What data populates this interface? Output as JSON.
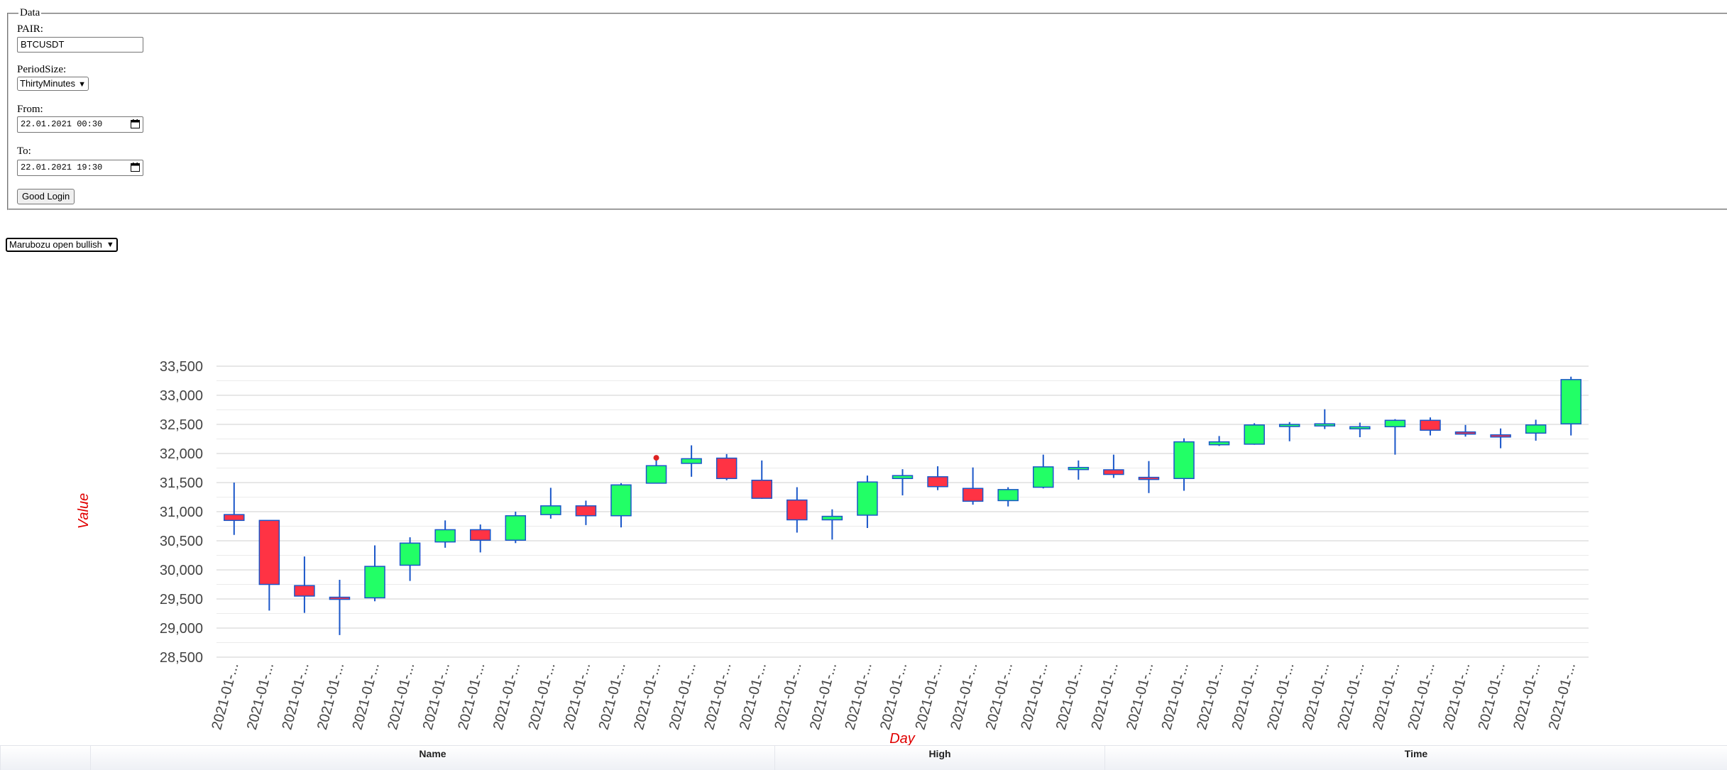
{
  "form": {
    "legend": "Data",
    "pair_label": "PAIR:",
    "pair_value": "BTCUSDT",
    "period_label": "PeriodSize:",
    "period_value": "ThirtyMinutes",
    "from_label": "From:",
    "from_value": "22.01.2021 00:30",
    "to_label": "To:",
    "to_value": "22.01.2021 19:30",
    "submit_label": "Good Login"
  },
  "pattern_select": {
    "value": "Marubozu open bullish"
  },
  "colors": {
    "bullish": "#22ff66",
    "bearish": "#ff3344",
    "wick": "#1a56c9",
    "marker": "#dd2222",
    "axis_title": "#e00000"
  },
  "chart_data": {
    "type": "candlestick",
    "xlabel": "Day",
    "ylabel": "Value",
    "ylim": [
      28500,
      33500
    ],
    "y_ticks": [
      "33,500",
      "33,000",
      "32,500",
      "32,000",
      "31,500",
      "31,000",
      "30,500",
      "30,000",
      "29,500",
      "29,000",
      "28,500"
    ],
    "grid": true,
    "x_tick_label": "2021-01-...",
    "candles": [
      {
        "o": 30950,
        "h": 31500,
        "l": 30600,
        "c": 30850
      },
      {
        "o": 30850,
        "h": 30850,
        "l": 29300,
        "c": 29750
      },
      {
        "o": 29730,
        "h": 30230,
        "l": 29260,
        "c": 29550
      },
      {
        "o": 29530,
        "h": 29830,
        "l": 28880,
        "c": 29500
      },
      {
        "o": 29520,
        "h": 30420,
        "l": 29460,
        "c": 30060
      },
      {
        "o": 30080,
        "h": 30560,
        "l": 29810,
        "c": 30460
      },
      {
        "o": 30480,
        "h": 30850,
        "l": 30380,
        "c": 30690
      },
      {
        "o": 30690,
        "h": 30780,
        "l": 30300,
        "c": 30510
      },
      {
        "o": 30510,
        "h": 31000,
        "l": 30460,
        "c": 30930
      },
      {
        "o": 30950,
        "h": 31410,
        "l": 30880,
        "c": 31100
      },
      {
        "o": 31100,
        "h": 31190,
        "l": 30770,
        "c": 30930
      },
      {
        "o": 30930,
        "h": 31490,
        "l": 30730,
        "c": 31460
      },
      {
        "o": 31490,
        "h": 31950,
        "l": 31490,
        "c": 31790,
        "marker": true
      },
      {
        "o": 31830,
        "h": 32140,
        "l": 31600,
        "c": 31910
      },
      {
        "o": 31920,
        "h": 31990,
        "l": 31540,
        "c": 31570
      },
      {
        "o": 31540,
        "h": 31880,
        "l": 31220,
        "c": 31230
      },
      {
        "o": 31200,
        "h": 31420,
        "l": 30640,
        "c": 30860
      },
      {
        "o": 30860,
        "h": 31040,
        "l": 30520,
        "c": 30920
      },
      {
        "o": 30940,
        "h": 31620,
        "l": 30720,
        "c": 31510
      },
      {
        "o": 31570,
        "h": 31730,
        "l": 31280,
        "c": 31620
      },
      {
        "o": 31600,
        "h": 31780,
        "l": 31370,
        "c": 31430
      },
      {
        "o": 31400,
        "h": 31760,
        "l": 31120,
        "c": 31180
      },
      {
        "o": 31190,
        "h": 31420,
        "l": 31090,
        "c": 31380
      },
      {
        "o": 31420,
        "h": 31980,
        "l": 31400,
        "c": 31770
      },
      {
        "o": 31740,
        "h": 31880,
        "l": 31550,
        "c": 31760
      },
      {
        "o": 31720,
        "h": 31980,
        "l": 31580,
        "c": 31640
      },
      {
        "o": 31590,
        "h": 31870,
        "l": 31320,
        "c": 31570
      },
      {
        "o": 31570,
        "h": 32260,
        "l": 31360,
        "c": 32200
      },
      {
        "o": 32150,
        "h": 32300,
        "l": 32130,
        "c": 32200
      },
      {
        "o": 32160,
        "h": 32520,
        "l": 32150,
        "c": 32490
      },
      {
        "o": 32480,
        "h": 32540,
        "l": 32210,
        "c": 32500
      },
      {
        "o": 32480,
        "h": 32760,
        "l": 32420,
        "c": 32510
      },
      {
        "o": 32450,
        "h": 32530,
        "l": 32280,
        "c": 32460
      },
      {
        "o": 32460,
        "h": 32590,
        "l": 31980,
        "c": 32570
      },
      {
        "o": 32570,
        "h": 32620,
        "l": 32310,
        "c": 32400
      },
      {
        "o": 32370,
        "h": 32490,
        "l": 32290,
        "c": 32350
      },
      {
        "o": 32320,
        "h": 32430,
        "l": 32090,
        "c": 32300
      },
      {
        "o": 32350,
        "h": 32580,
        "l": 32220,
        "c": 32490
      },
      {
        "o": 32510,
        "h": 33320,
        "l": 32310,
        "c": 33270
      }
    ]
  },
  "grid": {
    "columns": [
      "Name",
      "High",
      "Time"
    ]
  }
}
